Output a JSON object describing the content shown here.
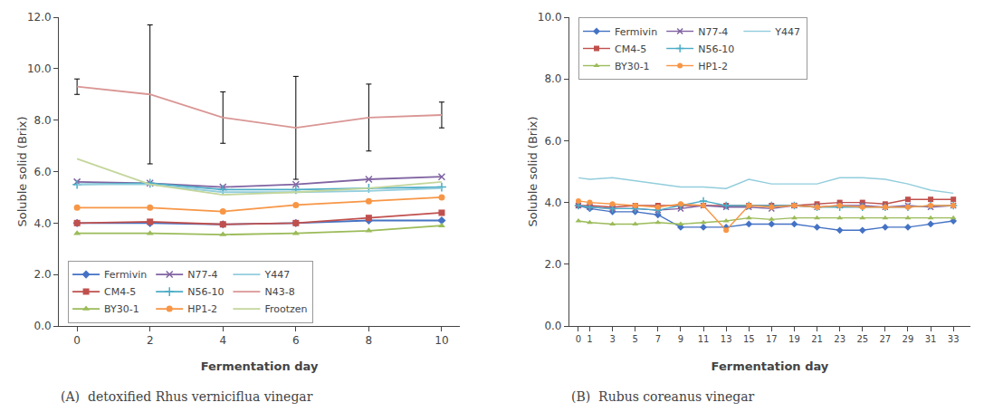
{
  "chart_data": [
    {
      "type": "line",
      "xlabel": "Fermentation day",
      "ylabel": "Soluble solid (Brix)",
      "x": [
        0,
        2,
        4,
        6,
        8,
        10
      ],
      "xlim": [
        -0.5,
        10.5
      ],
      "xticks": [
        0,
        2,
        4,
        6,
        8,
        10
      ],
      "ylim": [
        0,
        12.0
      ],
      "yticks": [
        {
          "value": 0.0,
          "label": "0.0"
        },
        {
          "value": 2.0,
          "label": "2.0"
        },
        {
          "value": 4.0,
          "label": "4.0"
        },
        {
          "value": 6.0,
          "label": "6.0"
        },
        {
          "value": 8.0,
          "label": "8.0"
        },
        {
          "value": 10.0,
          "label": "10.0"
        },
        {
          "value": 12.0,
          "label": "12.0"
        }
      ],
      "grid": false,
      "legend": "lower left",
      "annotations": [
        "(A)  detoxified Rhus verniciflua vinegar"
      ],
      "series": [
        {
          "name": "Fermivin",
          "color": "#4472c4",
          "marker": "diamond",
          "values": [
            4.0,
            4.0,
            3.95,
            4.0,
            4.1,
            4.1
          ]
        },
        {
          "name": "CM4-5",
          "color": "#c0504d",
          "marker": "square",
          "values": [
            4.0,
            4.05,
            3.95,
            4.0,
            4.2,
            4.4
          ]
        },
        {
          "name": "BY30-1",
          "color": "#9bbb59",
          "marker": "triangle",
          "values": [
            3.6,
            3.6,
            3.55,
            3.6,
            3.7,
            3.9
          ]
        },
        {
          "name": "N77-4",
          "color": "#8064a2",
          "marker": "x",
          "values": [
            5.6,
            5.55,
            5.4,
            5.5,
            5.7,
            5.8
          ]
        },
        {
          "name": "N56-10",
          "color": "#4bacc6",
          "marker": "plus",
          "values": [
            5.5,
            5.55,
            5.3,
            5.3,
            5.35,
            5.4
          ]
        },
        {
          "name": "HP1-2",
          "color": "#f79646",
          "marker": "circle",
          "values": [
            4.6,
            4.6,
            4.45,
            4.7,
            4.85,
            5.0
          ]
        },
        {
          "name": "Y447",
          "color": "#92cddc",
          "marker": "none",
          "values": [
            5.5,
            5.5,
            5.2,
            5.2,
            5.25,
            5.35
          ]
        },
        {
          "name": "N43-8",
          "color": "#d99694",
          "marker": "none",
          "values": [
            9.3,
            9.0,
            8.1,
            7.7,
            8.1,
            8.2
          ],
          "errors": [
            0.3,
            2.7,
            1.0,
            2.0,
            1.3,
            0.5
          ]
        },
        {
          "name": "Frootzen",
          "color": "#c3d69b",
          "marker": "none",
          "values": [
            6.5,
            5.5,
            5.1,
            5.2,
            5.35,
            5.6
          ]
        }
      ]
    },
    {
      "type": "line",
      "xlabel": "Fermentation day",
      "ylabel": "Soluble solid (Brix)",
      "x": [
        0,
        1,
        3,
        5,
        7,
        9,
        11,
        13,
        15,
        17,
        19,
        21,
        23,
        25,
        27,
        29,
        31,
        33
      ],
      "xlim": [
        -0.8,
        34.5
      ],
      "xticks": [
        0,
        1,
        3,
        5,
        7,
        9,
        11,
        13,
        15,
        17,
        19,
        21,
        23,
        25,
        27,
        29,
        31,
        33
      ],
      "ylim": [
        0,
        10.0
      ],
      "yticks": [
        {
          "value": 0.0,
          "label": "0.0"
        },
        {
          "value": 2.0,
          "label": "2.0"
        },
        {
          "value": 4.0,
          "label": "4.0"
        },
        {
          "value": 6.0,
          "label": "6.0"
        },
        {
          "value": 8.0,
          "label": "8.0"
        },
        {
          "value": 10.0,
          "label": "10.0"
        }
      ],
      "grid": false,
      "legend": "upper left",
      "annotations": [
        "(B)  Rubus coreanus vinegar"
      ],
      "series": [
        {
          "name": "Fermivin",
          "color": "#4472c4",
          "marker": "diamond",
          "values": [
            3.9,
            3.8,
            3.7,
            3.7,
            3.6,
            3.2,
            3.2,
            3.2,
            3.3,
            3.3,
            3.3,
            3.2,
            3.1,
            3.1,
            3.2,
            3.2,
            3.3,
            3.4
          ]
        },
        {
          "name": "CM4-5",
          "color": "#c0504d",
          "marker": "square",
          "values": [
            3.9,
            3.9,
            3.85,
            3.9,
            3.9,
            3.9,
            3.9,
            3.9,
            3.9,
            3.9,
            3.9,
            3.95,
            4.0,
            4.0,
            3.95,
            4.1,
            4.1,
            4.1
          ]
        },
        {
          "name": "BY30-1",
          "color": "#9bbb59",
          "marker": "triangle",
          "values": [
            3.4,
            3.35,
            3.3,
            3.3,
            3.35,
            3.3,
            3.35,
            3.4,
            3.5,
            3.45,
            3.5,
            3.5,
            3.5,
            3.5,
            3.5,
            3.5,
            3.5,
            3.5
          ]
        },
        {
          "name": "N77-4",
          "color": "#8064a2",
          "marker": "x",
          "values": [
            3.9,
            3.85,
            3.8,
            3.8,
            3.75,
            3.8,
            3.9,
            3.85,
            3.85,
            3.8,
            3.9,
            3.85,
            3.9,
            3.9,
            3.85,
            3.9,
            3.85,
            3.9
          ]
        },
        {
          "name": "N56-10",
          "color": "#4bacc6",
          "marker": "plus",
          "values": [
            3.9,
            3.85,
            3.8,
            3.8,
            3.75,
            3.9,
            4.05,
            3.9,
            3.9,
            3.9,
            3.9,
            3.85,
            3.85,
            3.85,
            3.85,
            3.85,
            3.9,
            3.9
          ]
        },
        {
          "name": "HP1-2",
          "color": "#f79646",
          "marker": "circle",
          "values": [
            4.05,
            4.0,
            3.95,
            3.9,
            3.85,
            3.95,
            3.9,
            3.1,
            3.9,
            3.85,
            3.9,
            3.85,
            3.9,
            3.85,
            3.85,
            3.85,
            3.9,
            3.9
          ]
        },
        {
          "name": "Y447",
          "color": "#92cddc",
          "marker": "none",
          "values": [
            4.8,
            4.75,
            4.8,
            4.7,
            4.6,
            4.5,
            4.5,
            4.45,
            4.75,
            4.6,
            4.6,
            4.6,
            4.8,
            4.8,
            4.75,
            4.6,
            4.4,
            4.3
          ]
        }
      ]
    }
  ]
}
